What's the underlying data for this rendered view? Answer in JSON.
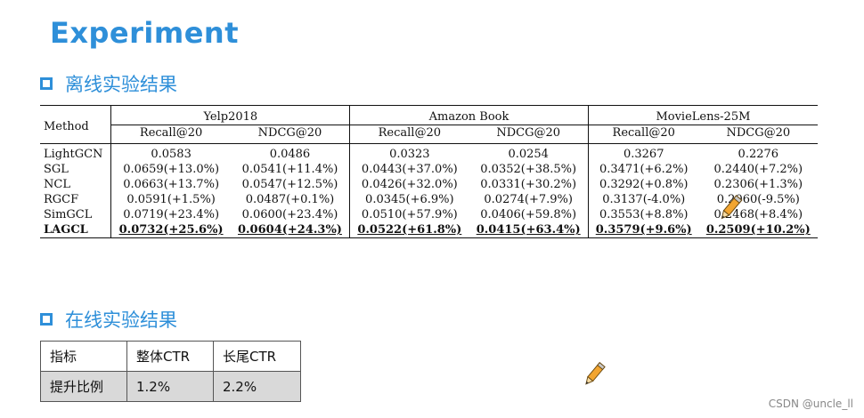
{
  "page": {
    "title": "Experiment",
    "offline_heading": "离线实验结果",
    "online_heading": "在线实验结果",
    "watermark": "CSDN @uncle_ll"
  },
  "offline_table": {
    "method_header": "Method",
    "datasets": [
      "Yelp2018",
      "Amazon Book",
      "MovieLens-25M"
    ],
    "metrics": [
      "Recall@20",
      "NDCG@20",
      "Recall@20",
      "NDCG@20",
      "Recall@20",
      "NDCG@20"
    ],
    "rows": [
      {
        "method": "LightGCN",
        "values": [
          "0.0583",
          "0.0486",
          "0.0323",
          "0.0254",
          "0.3267",
          "0.2276"
        ]
      },
      {
        "method": "SGL",
        "values": [
          "0.0659(+13.0%)",
          "0.0541(+11.4%)",
          "0.0443(+37.0%)",
          "0.0352(+38.5%)",
          "0.3471(+6.2%)",
          "0.2440(+7.2%)"
        ]
      },
      {
        "method": "NCL",
        "values": [
          "0.0663(+13.7%)",
          "0.0547(+12.5%)",
          "0.0426(+32.0%)",
          "0.0331(+30.2%)",
          "0.3292(+0.8%)",
          "0.2306(+1.3%)"
        ]
      },
      {
        "method": "RGCF",
        "values": [
          "0.0591(+1.5%)",
          "0.0487(+0.1%)",
          "0.0345(+6.9%)",
          "0.0274(+7.9%)",
          "0.3137(-4.0%)",
          "0.2060(-9.5%)"
        ]
      },
      {
        "method": "SimGCL",
        "values": [
          "0.0719(+23.4%)",
          "0.0600(+23.4%)",
          "0.0510(+57.9%)",
          "0.0406(+59.8%)",
          "0.3553(+8.8%)",
          "0.2468(+8.4%)"
        ]
      },
      {
        "method": "LAGCL",
        "values": [
          "0.0732(+25.6%)",
          "0.0604(+24.3%)",
          "0.0522(+61.8%)",
          "0.0415(+63.4%)",
          "0.3579(+9.6%)",
          "0.2509(+10.2%)"
        ]
      }
    ]
  },
  "online_table": {
    "header": [
      "指标",
      "整体CTR",
      "长尾CTR"
    ],
    "row": [
      "提升比例",
      "1.2%",
      "2.2%"
    ]
  },
  "colors": {
    "accent": "#2e8fd9",
    "pencil_body": "#f2a531",
    "shaded_row": "#d9d9d9"
  },
  "icons": [
    "pencil-icon",
    "square-bullet-icon"
  ]
}
